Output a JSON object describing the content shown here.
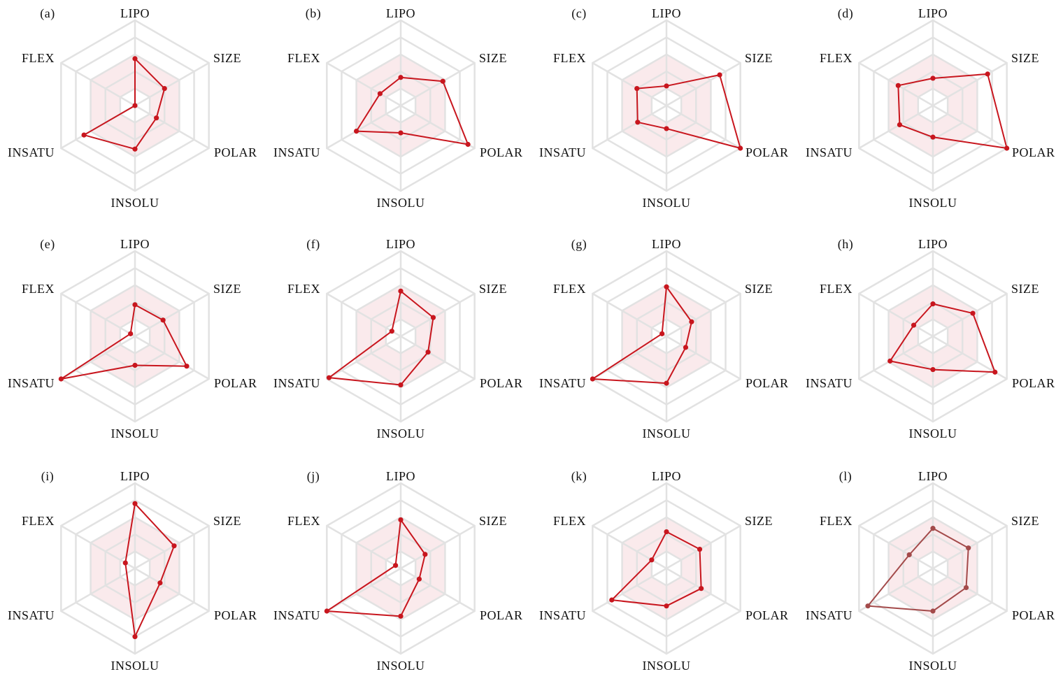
{
  "chart_data": {
    "type": "radar",
    "axes": [
      "LIPO",
      "SIZE",
      "POLAR",
      "INSOLU",
      "INSATU",
      "FLEX"
    ],
    "range": [
      0,
      1
    ],
    "grid_levels": [
      0.2,
      0.4,
      0.6,
      0.8,
      1.0
    ],
    "optimal_band": [
      0.2,
      0.6
    ],
    "colors": {
      "series": "#c8161e",
      "series_alt": "#a34a4a",
      "band": "#e8a0a8",
      "grid": "#e2e2e2"
    },
    "panels": [
      {
        "label": "(a)",
        "values": [
          0.55,
          0.4,
          0.29,
          0.51,
          0.69,
          0.0
        ]
      },
      {
        "label": "(b)",
        "values": [
          0.33,
          0.57,
          0.91,
          0.32,
          0.6,
          0.28
        ]
      },
      {
        "label": "(c)",
        "values": [
          0.23,
          0.72,
          1.0,
          0.27,
          0.39,
          0.4
        ]
      },
      {
        "label": "(d)",
        "values": [
          0.32,
          0.74,
          1.0,
          0.37,
          0.45,
          0.47
        ]
      },
      {
        "label": "(e)",
        "values": [
          0.37,
          0.38,
          0.7,
          0.34,
          1.0,
          0.06
        ]
      },
      {
        "label": "(f)",
        "values": [
          0.53,
          0.44,
          0.37,
          0.57,
          0.97,
          0.12
        ]
      },
      {
        "label": "(g)",
        "values": [
          0.58,
          0.34,
          0.26,
          0.55,
          1.0,
          0.06
        ]
      },
      {
        "label": "(h)",
        "values": [
          0.38,
          0.54,
          0.84,
          0.39,
          0.58,
          0.26
        ]
      },
      {
        "label": "(i)",
        "values": [
          0.76,
          0.53,
          0.34,
          0.8,
          null,
          0.13
        ]
      },
      {
        "label": "(j)",
        "values": [
          0.57,
          0.33,
          0.25,
          0.56,
          1.0,
          0.07
        ]
      },
      {
        "label": "(k)",
        "values": [
          0.43,
          0.45,
          0.47,
          0.44,
          0.74,
          0.2
        ]
      },
      {
        "label": "(l)",
        "values": [
          0.47,
          0.48,
          0.45,
          0.5,
          0.88,
          0.32
        ],
        "color": "alt"
      }
    ]
  }
}
